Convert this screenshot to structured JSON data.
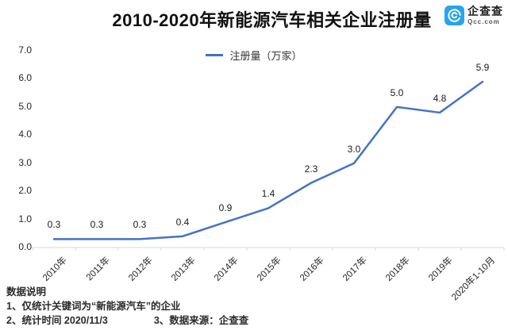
{
  "title": "2010-2020年新能源汽车相关企业注册量",
  "logo": {
    "name": "企查查",
    "domain": "Qcc.com"
  },
  "legend": {
    "label": "注册量（万家）"
  },
  "chart_data": {
    "type": "line",
    "title": "2010-2020年新能源汽车相关企业注册量",
    "categories": [
      "2010年",
      "2011年",
      "2012年",
      "2013年",
      "2014年",
      "2015年",
      "2016年",
      "2017年",
      "2018年",
      "2019年",
      "2020年1-10月"
    ],
    "series": [
      {
        "name": "注册量（万家）",
        "values": [
          0.3,
          0.3,
          0.3,
          0.4,
          0.9,
          1.4,
          2.3,
          3.0,
          5.0,
          4.8,
          5.9
        ]
      }
    ],
    "point_labels": [
      "0.3",
      "0.3",
      "0.3",
      "0.4",
      "0.9",
      "1.4",
      "2.3",
      "3.0",
      "5.0",
      "4.8",
      "5.9"
    ],
    "ytick_labels": [
      "7.0",
      "6.0",
      "5.0",
      "4.0",
      "3.0",
      "2.0",
      "1.0",
      "0.0"
    ],
    "ylim": [
      0,
      7
    ],
    "grid": false,
    "legend_position": "top-center"
  },
  "footnotes": {
    "heading": "数据说明",
    "line1": "1、仅统计关键词为“新能源汽车”的企业",
    "line2a": "2、统计时间 2020/11/3",
    "line2b": "3、数据来源：企查查"
  },
  "colors": {
    "line": "#4472C4",
    "logo_blue": "#26A5EE",
    "axis": "#D9D9D9"
  }
}
